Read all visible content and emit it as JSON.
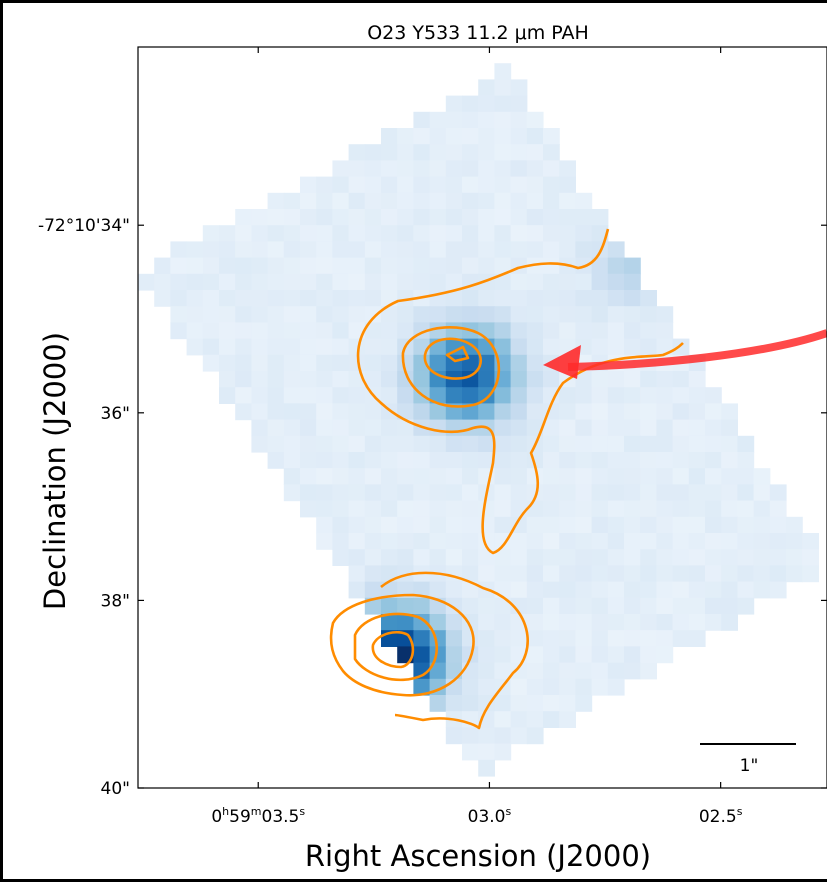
{
  "chart_data": {
    "type": "heatmap",
    "title": "O23 Y533 11.2 μm PAH",
    "xlabel": "Right Ascension (J2000)",
    "ylabel": "Declination (J2000)",
    "colormap": "Blues",
    "x_ticks": [
      {
        "value": 3.5,
        "label_parts": [
          [
            "0",
            false
          ],
          [
            "h",
            true
          ],
          [
            "59",
            false
          ],
          [
            "m",
            true
          ],
          [
            "03.5",
            false
          ],
          [
            "s",
            true
          ]
        ]
      },
      {
        "value": 3.0,
        "label_parts": [
          [
            "03.0",
            false
          ],
          [
            "s",
            true
          ]
        ]
      },
      {
        "value": 2.5,
        "label_parts": [
          [
            "02.5",
            false
          ],
          [
            "s",
            true
          ]
        ]
      }
    ],
    "xlim": [
      3.76,
      2.27
    ],
    "y_ticks": [
      {
        "value": 34,
        "label": "-72°10'34\""
      },
      {
        "value": 36,
        "label": "36\""
      },
      {
        "value": 38,
        "label": "38\""
      },
      {
        "value": 40,
        "label": "40\""
      }
    ],
    "ylim": [
      40.0,
      32.1
    ],
    "scale_bar": {
      "label": "1\"",
      "length_arcsec": 1
    },
    "sources": [
      {
        "ra_s": 3.05,
        "dec_s": 35.6,
        "peak": 0.78
      },
      {
        "ra_s": 3.2,
        "dec_s": 38.6,
        "peak": 1.0
      }
    ],
    "contour_color": "#ff8c00",
    "arrow_color": "#ff2a2a"
  }
}
